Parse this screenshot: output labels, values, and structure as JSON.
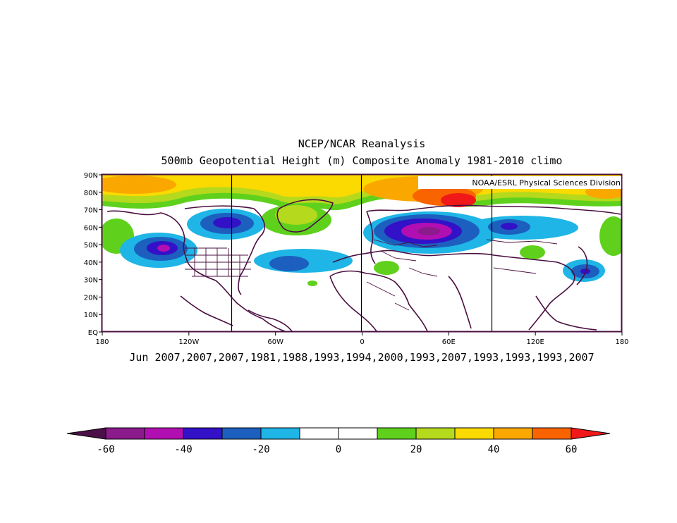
{
  "title": "NCEP/NCAR Reanalysis",
  "subtitle": "500mb Geopotential Height (m) Composite Anomaly 1981-2010 climo",
  "credit": "NOAA/ESRL Physical Sciences Division",
  "caption": "Jun 2007,2007,2007,1981,1988,1993,1994,2000,1993,2007,1993,1993,1993,2007",
  "lat_labels": [
    "EQ",
    "10N",
    "20N",
    "30N",
    "40N",
    "50N",
    "60N",
    "70N",
    "80N",
    "90N"
  ],
  "lon_labels": [
    "180",
    "120W",
    "60W",
    "0",
    "60E",
    "120E",
    "180"
  ],
  "colorbar": {
    "tick_labels": [
      "-60",
      "-40",
      "-20",
      "0",
      "20",
      "40",
      "60"
    ],
    "colors": [
      "#8b1a8b",
      "#b20fb2",
      "#3311c7",
      "#1c5fbf",
      "#1fb5e6",
      "#ffffff",
      "#ffffff",
      "#5fd11c",
      "#b5d91c",
      "#fada00",
      "#faa800",
      "#fa6400"
    ],
    "under_color": "#4a1047",
    "over_color": "#f01818"
  },
  "fields": {
    "background": "#ffffff",
    "coast_color": "#4a0f40",
    "polar_band_color": "#fada00"
  }
}
